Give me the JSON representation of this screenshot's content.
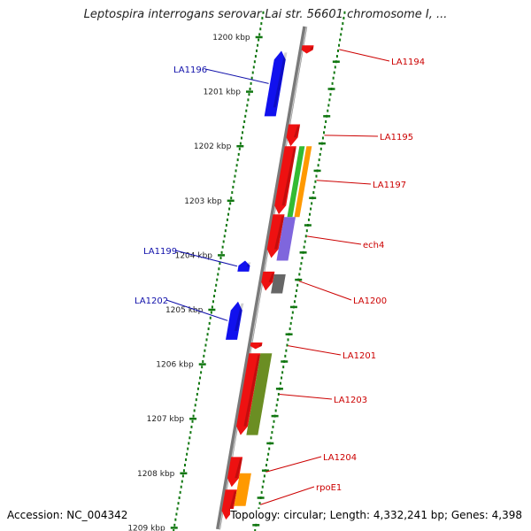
{
  "title": "Leptospira interrogans serovar Lai str. 56601 chromosome I, ...",
  "accession": "Accession: NC_004342",
  "topology": "Topology: circular; Length: 4,332,241 bp; Genes: 4,398",
  "colors": {
    "axis": "#7a7a7a",
    "tick": "#117711",
    "plus_strand": "#ee1111",
    "minus_strand": "#1111ee",
    "label_minus": "#1010aa",
    "label_plus": "#cc0000"
  },
  "scale": [
    {
      "label": "1200 kbp",
      "kbp": 1200
    },
    {
      "label": "1201 kbp",
      "kbp": 1201
    },
    {
      "label": "1202 kbp",
      "kbp": 1202
    },
    {
      "label": "1203 kbp",
      "kbp": 1203
    },
    {
      "label": "1204 kbp",
      "kbp": 1204
    },
    {
      "label": "1205 kbp",
      "kbp": 1205
    },
    {
      "label": "1206 kbp",
      "kbp": 1206
    },
    {
      "label": "1207 kbp",
      "kbp": 1207
    },
    {
      "label": "1208 kbp",
      "kbp": 1208
    },
    {
      "label": "1209 kbp",
      "kbp": 1209
    }
  ],
  "genes_minus": [
    {
      "label": "LA1196",
      "start": 1200.25,
      "end": 1201.45
    },
    {
      "label": "LA1199",
      "start": 1204.1,
      "end": 1204.3
    },
    {
      "label": "LA1202",
      "start": 1204.85,
      "end": 1205.55
    }
  ],
  "genes_plus": [
    {
      "label": "LA1194",
      "start": 1200.15,
      "end": 1200.3
    },
    {
      "label": "LA1195",
      "start": 1201.6,
      "end": 1202.0
    },
    {
      "label": "LA1197",
      "start": 1202.0,
      "end": 1203.25
    },
    {
      "label": "ech4",
      "start": 1203.25,
      "end": 1204.05
    },
    {
      "label": "LA1200",
      "start": 1204.3,
      "end": 1204.65
    },
    {
      "label": "LA1201",
      "start": 1205.6,
      "end": 1205.72
    },
    {
      "label": "LA1203",
      "start": 1205.8,
      "end": 1207.3
    },
    {
      "label": "LA1204",
      "start": 1207.7,
      "end": 1208.25
    },
    {
      "label": "rpoE1",
      "start": 1208.3,
      "end": 1208.85
    }
  ],
  "features_inner": [
    {
      "color": "#33bb33",
      "start": 1202.0,
      "end": 1203.3
    },
    {
      "color": "#ff9900",
      "start": 1202.0,
      "end": 1203.3
    },
    {
      "color": "#7f66dd",
      "start": 1203.3,
      "end": 1204.1
    },
    {
      "color": "#666666",
      "start": 1204.35,
      "end": 1204.7
    },
    {
      "color": "#6b8e23",
      "start": 1205.8,
      "end": 1207.3
    },
    {
      "color": "#ff9900",
      "start": 1208.0,
      "end": 1208.6
    }
  ]
}
